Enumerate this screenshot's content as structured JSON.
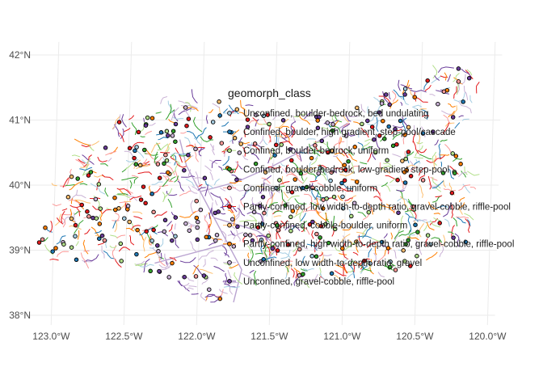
{
  "chart_data": {
    "type": "map",
    "title": "",
    "xlabel": "",
    "ylabel": "",
    "xlim": [
      -123.2,
      -119.95
    ],
    "ylim": [
      37.9,
      42.15
    ],
    "grid": true,
    "legend_placement": "right",
    "x_ticks": [
      {
        "value": -123.0,
        "label": "123.0°W"
      },
      {
        "value": -122.5,
        "label": "122.5°W"
      },
      {
        "value": -122.0,
        "label": "122.0°W"
      },
      {
        "value": -121.5,
        "label": "121.5°W"
      },
      {
        "value": -121.0,
        "label": "121.0°W"
      },
      {
        "value": -120.5,
        "label": "120.5°W"
      },
      {
        "value": -120.0,
        "label": "120.0°W"
      }
    ],
    "y_ticks": [
      {
        "value": 38,
        "label": "38°N"
      },
      {
        "value": 39,
        "label": "39°N"
      },
      {
        "value": 40,
        "label": "40°N"
      },
      {
        "value": 41,
        "label": "41°N"
      },
      {
        "value": 42,
        "label": "42°N"
      }
    ],
    "legend": {
      "title": "geomorph_class",
      "entries": [
        {
          "label": "Unconfined, boulder-bedrock, bed undulating",
          "color": "#a6cee3"
        },
        {
          "label": "Confined, boulder, high gradient, step-pool/cascade",
          "color": "#1f78b4"
        },
        {
          "label": "Confined, boulder-bedrock, uniform",
          "color": "#b2df8a"
        },
        {
          "label": "Confined, boulder-bedrock, low-gradient step-pool",
          "color": "#33a02c"
        },
        {
          "label": "Confined, gravel-cobble, uniform",
          "color": "#fb9a99"
        },
        {
          "label": "Partly-confined, low width-to-depth ratio, gravel-cobble, riffle-pool",
          "color": "#e31a1c"
        },
        {
          "label": "Partly-confined, cobble-boulder, uniform",
          "color": "#fdbf6f"
        },
        {
          "label": "Partly-confined, high width-to-depth ratio, gravel-cobble, riffle-pool",
          "color": "#ff7f00"
        },
        {
          "label": "Unconfined, low width-to-depth ratio, gravel",
          "color": "#cab2d6"
        },
        {
          "label": "Unconfined, gravel-cobble, riffle-pool",
          "color": "#6a3d9a"
        }
      ]
    }
  }
}
